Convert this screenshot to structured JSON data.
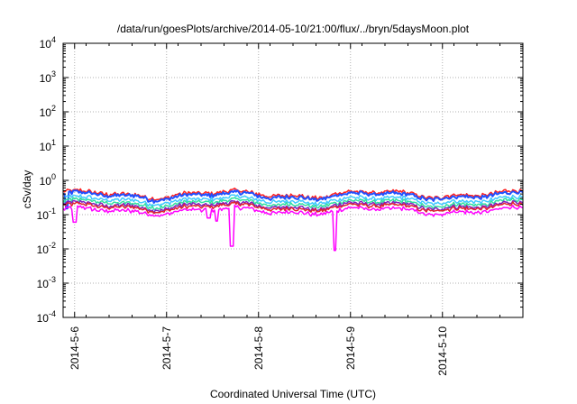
{
  "chart_data": {
    "type": "line",
    "title": "/data/run/goesPlots/archive/2014-05-10/21:00/flux/../bryn/5daysMoon.plot",
    "xlabel": "Coordinated Universal Time (UTC)",
    "ylabel": "cSv/day",
    "y_scale": "log",
    "ylim": [
      0.0001,
      10000
    ],
    "xlim": [
      "2014-05-05 21:00",
      "2014-05-10 21:00"
    ],
    "x_ticks": [
      "2014-5-6",
      "2014-5-7",
      "2014-5-8",
      "2014-5-9",
      "2014-5-10"
    ],
    "y_ticks": [
      {
        "value": 0.0001,
        "base": "10",
        "exp": "-4"
      },
      {
        "value": 0.001,
        "base": "10",
        "exp": "-3"
      },
      {
        "value": 0.01,
        "base": "10",
        "exp": "-2"
      },
      {
        "value": 0.1,
        "base": "10",
        "exp": "-1"
      },
      {
        "value": 1,
        "base": "10",
        "exp": "0"
      },
      {
        "value": 10,
        "base": "10",
        "exp": "1"
      },
      {
        "value": 100,
        "base": "10",
        "exp": "2"
      },
      {
        "value": 1000,
        "base": "10",
        "exp": "3"
      },
      {
        "value": 10000,
        "base": "10",
        "exp": "4"
      }
    ],
    "grid": true,
    "series": [
      {
        "color": "#ff2020",
        "base": 0.4,
        "dips": []
      },
      {
        "color": "#2050ff",
        "base": 0.36,
        "dips": [
          {
            "x": "2014-05-05 22:00",
            "value": 0.15
          }
        ]
      },
      {
        "color": "#40c8ff",
        "base": 0.27,
        "dips": []
      },
      {
        "color": "#30e0a0",
        "base": 0.22,
        "dips": []
      },
      {
        "color": "#8020c0",
        "base": 0.185,
        "dips": []
      },
      {
        "color": "#e02030",
        "base": 0.165,
        "dips": []
      },
      {
        "color": "#ff00ff",
        "base": 0.13,
        "dips": [
          {
            "x": "2014-05-06 00:00",
            "value": 0.06
          },
          {
            "x": "2014-05-07 11:00",
            "value": 0.08
          },
          {
            "x": "2014-05-07 13:00",
            "value": 0.065
          },
          {
            "x": "2014-05-07 17:00",
            "value": 0.012
          },
          {
            "x": "2014-05-08 20:00",
            "value": 0.009
          }
        ]
      }
    ]
  }
}
